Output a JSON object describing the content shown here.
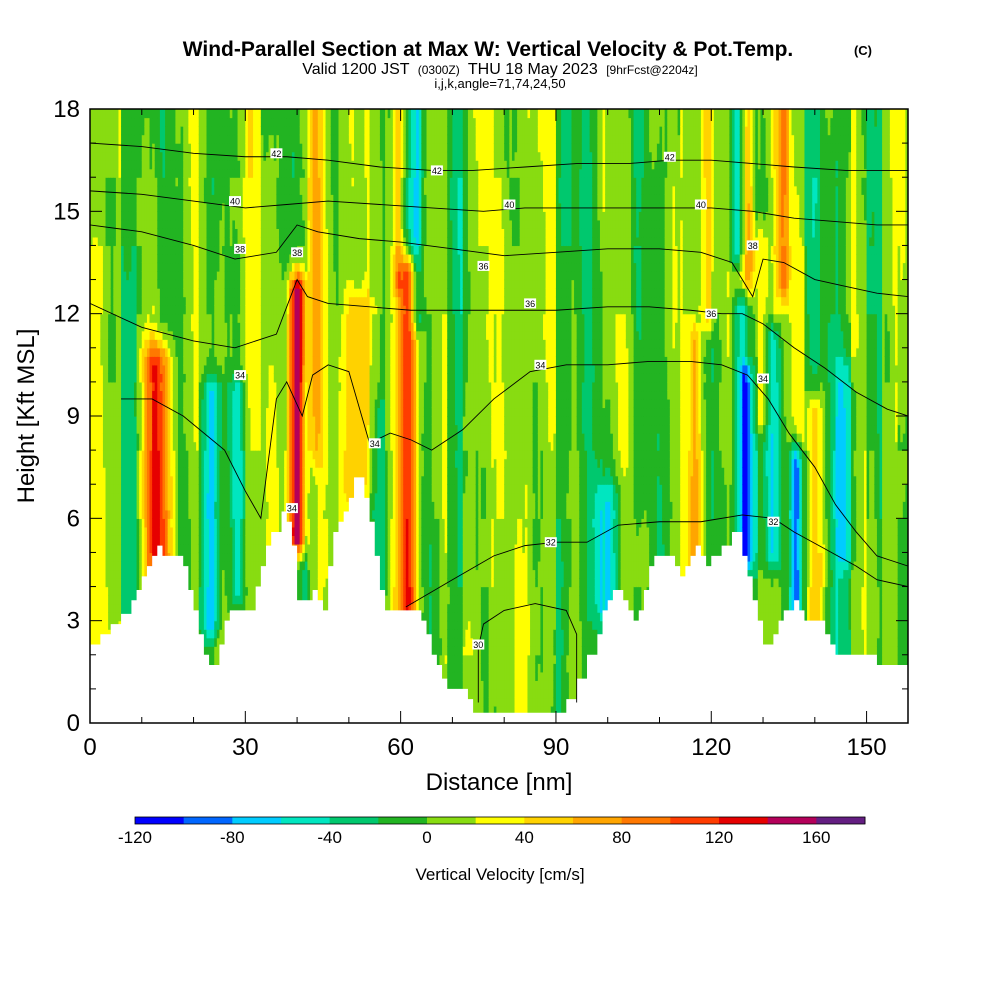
{
  "titles": {
    "main": "Wind-Parallel Section at Max W: Vertical Velocity & Pot.Temp.",
    "copyright": "(C)",
    "valid_prefix": "Valid 1200 JST",
    "valid_utc": "(0300Z)",
    "valid_date": "THU 18 May 2023",
    "forecast": "[9hrFcst@2204z]",
    "indices": "i,j,k,angle=71,74,24,50"
  },
  "chart_data": {
    "type": "heatmap",
    "xlabel": "Distance [nm]",
    "ylabel": "Height [Kft MSL]",
    "xlim": [
      0,
      158
    ],
    "ylim": [
      0,
      18
    ],
    "x_ticks": [
      0,
      30,
      60,
      90,
      120,
      150
    ],
    "x_tick_labels": [
      "0",
      "30",
      "60",
      "90",
      "120",
      "150"
    ],
    "y_ticks": [
      0,
      3,
      6,
      9,
      12,
      15,
      18
    ],
    "y_tick_labels": [
      "0",
      "3",
      "6",
      "9",
      "12",
      "15",
      "18"
    ],
    "colorbar": {
      "label": "Vertical Velocity [cm/s]",
      "levels": [
        -120,
        -100,
        -80,
        -60,
        -40,
        -20,
        0,
        20,
        40,
        60,
        80,
        100,
        120,
        140,
        160,
        180
      ],
      "colors": [
        "#0000ff",
        "#0066ff",
        "#00ccff",
        "#00e6c0",
        "#00c86e",
        "#22b422",
        "#88dc11",
        "#ffff00",
        "#ffd200",
        "#ffa500",
        "#ff7800",
        "#ff3c00",
        "#e60000",
        "#b4005a",
        "#641e82"
      ],
      "tick_values": [
        -120,
        -80,
        -40,
        0,
        40,
        80,
        120,
        160
      ],
      "tick_labels": [
        "-120",
        "-80",
        "-40",
        "0",
        "40",
        "80",
        "120",
        "160"
      ]
    },
    "terrain": {
      "x": [
        0,
        2,
        4,
        6,
        8,
        9,
        10,
        11,
        12,
        13,
        14,
        16,
        18,
        19,
        20,
        21,
        22,
        23,
        24,
        25,
        26,
        27,
        28,
        30,
        31,
        32,
        33,
        34,
        35,
        37,
        38,
        39,
        40,
        41,
        42,
        43,
        44,
        45,
        46,
        47,
        48,
        49,
        50,
        51,
        52,
        53,
        54,
        55,
        56,
        57,
        58,
        59,
        60,
        62,
        63,
        64,
        65,
        66,
        67,
        68,
        69,
        70,
        71,
        72,
        73,
        74,
        76,
        78,
        80,
        82,
        84,
        86,
        88,
        90,
        92,
        94,
        96,
        98,
        99,
        100,
        101,
        102,
        103,
        104,
        105,
        106,
        107,
        108,
        109,
        110,
        111,
        112,
        113,
        114,
        115,
        116,
        117,
        118,
        119,
        120,
        122,
        124,
        125,
        126,
        127,
        128,
        129,
        130,
        131,
        132,
        133,
        134,
        135,
        136,
        137,
        138,
        139,
        140,
        141,
        142,
        143,
        144,
        145,
        146,
        147,
        148,
        150,
        152,
        154,
        156,
        158
      ],
      "y": [
        2.3,
        2.6,
        2.9,
        3.2,
        3.6,
        3.9,
        4.3,
        4.6,
        4.9,
        5.2,
        4.9,
        4.9,
        4.6,
        3.9,
        3.3,
        2.6,
        2.0,
        1.7,
        1.7,
        2.3,
        3.0,
        3.3,
        3.3,
        3.3,
        3.3,
        4.0,
        4.6,
        5.2,
        5.6,
        6.2,
        5.9,
        5.2,
        3.6,
        3.6,
        3.6,
        3.9,
        3.6,
        3.3,
        4.6,
        5.6,
        5.9,
        6.2,
        6.6,
        7.2,
        7.2,
        6.6,
        5.9,
        4.9,
        3.9,
        3.3,
        3.3,
        3.3,
        3.3,
        3.3,
        3.3,
        3.0,
        2.6,
        2.0,
        1.7,
        1.3,
        1.0,
        1.0,
        1.0,
        1.0,
        0.7,
        0.3,
        0.3,
        0.3,
        0.3,
        0.3,
        0.3,
        0.3,
        0.3,
        0.3,
        0.7,
        1.3,
        2.0,
        2.6,
        3.3,
        3.6,
        3.9,
        3.9,
        3.6,
        3.3,
        3.0,
        3.3,
        3.9,
        4.6,
        4.9,
        4.9,
        4.9,
        4.9,
        4.6,
        4.3,
        4.6,
        4.9,
        5.2,
        4.9,
        4.6,
        4.9,
        5.2,
        5.6,
        5.6,
        4.9,
        4.3,
        3.6,
        3.0,
        2.3,
        2.3,
        2.6,
        3.0,
        3.3,
        3.3,
        3.6,
        3.3,
        3.0,
        3.0,
        3.0,
        3.0,
        2.6,
        2.3,
        2.0,
        2.0,
        2.0,
        2.0,
        2.0,
        2.0,
        1.7,
        1.7,
        1.7,
        1.7
      ]
    },
    "velocity_features": [
      {
        "type": "updraft",
        "x_center": 13,
        "half_width": 2.5,
        "base": 4,
        "top": 10.5,
        "peak": 115
      },
      {
        "type": "downdraft",
        "x_center": 23.5,
        "half_width": 2,
        "base": 3,
        "top": 9.5,
        "peak": -65
      },
      {
        "type": "downdraft",
        "x_center": 28.5,
        "half_width": 1.5,
        "base": 4,
        "top": 9.5,
        "peak": -45
      },
      {
        "type": "updraft",
        "x_center": 40,
        "half_width": 1.6,
        "base": 5.5,
        "top": 12.5,
        "peak": 170
      },
      {
        "type": "updraft",
        "x_center": 43.5,
        "half_width": 1.2,
        "base": 8,
        "top": 18,
        "peak": 45
      },
      {
        "type": "updraft",
        "x_center": 52,
        "half_width": 2.5,
        "base": 7,
        "top": 12,
        "peak": 55
      },
      {
        "type": "downdraft",
        "x_center": 56,
        "half_width": 1.5,
        "base": 4,
        "top": 9,
        "peak": -30
      },
      {
        "type": "updraft",
        "x_center": 61.5,
        "half_width": 1.8,
        "base": 3.5,
        "top": 13,
        "peak": 130
      },
      {
        "type": "updraft",
        "x_center": 59.5,
        "half_width": 1,
        "base": 13,
        "top": 18,
        "peak": 45
      },
      {
        "type": "downdraft",
        "x_center": 63,
        "half_width": 1.3,
        "base": 12,
        "top": 18,
        "peak": -55
      },
      {
        "type": "downdraft",
        "x_center": 100,
        "half_width": 2.5,
        "base": 3.5,
        "top": 6.5,
        "peak": -55
      },
      {
        "type": "updraft",
        "x_center": 117,
        "half_width": 1.2,
        "base": 4.5,
        "top": 11,
        "peak": 45
      },
      {
        "type": "updraft",
        "x_center": 119.5,
        "half_width": 1.2,
        "base": 12,
        "top": 18,
        "peak": 55
      },
      {
        "type": "downdraft",
        "x_center": 126.5,
        "half_width": 1.8,
        "base": 5,
        "top": 12,
        "peak": -115
      },
      {
        "type": "updraft",
        "x_center": 127,
        "half_width": 1.3,
        "base": 11,
        "top": 18,
        "peak": 80
      },
      {
        "type": "downdraft",
        "x_center": 125,
        "half_width": 1.5,
        "base": 14,
        "top": 18,
        "peak": -70
      },
      {
        "type": "updraft",
        "x_center": 129.5,
        "half_width": 1.8,
        "base": 9,
        "top": 14,
        "peak": 45
      },
      {
        "type": "downdraft",
        "x_center": 132,
        "half_width": 1.5,
        "base": 5,
        "top": 11,
        "peak": -70
      },
      {
        "type": "downdraft",
        "x_center": 136.5,
        "half_width": 1.3,
        "base": 3,
        "top": 7.5,
        "peak": -115
      },
      {
        "type": "updraft",
        "x_center": 140,
        "half_width": 1.6,
        "base": 3,
        "top": 9,
        "peak": 65
      },
      {
        "type": "updraft",
        "x_center": 134,
        "half_width": 1.2,
        "base": 13,
        "top": 18,
        "peak": 60
      },
      {
        "type": "downdraft",
        "x_center": 146,
        "half_width": 2,
        "base": 5,
        "top": 10,
        "peak": -45
      },
      {
        "type": "updraft",
        "x_center": 151.5,
        "half_width": 1.5,
        "base": 3,
        "top": 8,
        "peak": 10
      }
    ],
    "theta_contours": [
      {
        "level": 30,
        "label": "30",
        "points": [
          [
            75,
            0.6
          ],
          [
            75,
            2.2
          ],
          [
            76,
            2.9
          ],
          [
            80,
            3.3
          ],
          [
            86,
            3.5
          ],
          [
            92,
            3.3
          ],
          [
            94,
            2.6
          ],
          [
            94,
            0.6
          ]
        ]
      },
      {
        "level": 32,
        "label": "32",
        "points": [
          [
            61,
            3.4
          ],
          [
            70,
            4.2
          ],
          [
            78,
            4.9
          ],
          [
            84,
            5.2
          ],
          [
            90,
            5.3
          ],
          [
            96,
            5.3
          ],
          [
            102,
            5.8
          ],
          [
            110,
            5.9
          ],
          [
            118,
            5.9
          ],
          [
            126,
            6.1
          ],
          [
            132,
            6.0
          ],
          [
            136,
            5.6
          ],
          [
            142,
            5.1
          ],
          [
            148,
            4.6
          ],
          [
            152,
            4.2
          ],
          [
            158,
            4.0
          ]
        ]
      },
      {
        "level": 34,
        "label": "34",
        "points": [
          [
            6,
            9.5
          ],
          [
            12,
            9.5
          ],
          [
            18,
            9.0
          ],
          [
            26,
            8.0
          ],
          [
            30,
            6.8
          ],
          [
            33,
            6.0
          ],
          [
            36,
            9.5
          ],
          [
            38,
            10.0
          ],
          [
            41,
            9.0
          ],
          [
            43,
            10.2
          ],
          [
            46,
            10.5
          ],
          [
            50,
            10.3
          ],
          [
            54,
            8.2
          ],
          [
            58,
            8.5
          ],
          [
            62,
            8.3
          ],
          [
            66,
            8.0
          ],
          [
            72,
            8.6
          ],
          [
            78,
            9.5
          ],
          [
            85,
            10.3
          ],
          [
            92,
            10.5
          ],
          [
            100,
            10.5
          ],
          [
            108,
            10.6
          ],
          [
            116,
            10.6
          ],
          [
            122,
            10.5
          ],
          [
            127,
            10.2
          ],
          [
            131,
            9.5
          ],
          [
            135,
            8.5
          ],
          [
            140,
            7.5
          ],
          [
            144,
            6.4
          ],
          [
            148,
            5.6
          ],
          [
            152,
            4.9
          ],
          [
            158,
            4.6
          ]
        ]
      },
      {
        "level": 36,
        "label": "36",
        "points": [
          [
            0,
            12.3
          ],
          [
            10,
            11.6
          ],
          [
            20,
            11.2
          ],
          [
            28,
            11.0
          ],
          [
            36,
            11.4
          ],
          [
            40,
            13.0
          ],
          [
            42,
            12.5
          ],
          [
            46,
            12.3
          ],
          [
            54,
            12.2
          ],
          [
            62,
            12.1
          ],
          [
            70,
            12.1
          ],
          [
            80,
            12.1
          ],
          [
            90,
            12.1
          ],
          [
            100,
            12.2
          ],
          [
            108,
            12.2
          ],
          [
            116,
            12.1
          ],
          [
            122,
            12.0
          ],
          [
            126,
            12.0
          ],
          [
            130,
            11.7
          ],
          [
            136,
            11.0
          ],
          [
            142,
            10.4
          ],
          [
            148,
            9.7
          ],
          [
            154,
            9.2
          ],
          [
            158,
            9.0
          ]
        ]
      },
      {
        "level": 38,
        "label": "38",
        "points": [
          [
            0,
            14.6
          ],
          [
            10,
            14.4
          ],
          [
            20,
            14.0
          ],
          [
            28,
            13.6
          ],
          [
            36,
            13.8
          ],
          [
            40,
            14.6
          ],
          [
            44,
            14.4
          ],
          [
            52,
            14.2
          ],
          [
            60,
            14.1
          ],
          [
            70,
            13.9
          ],
          [
            80,
            13.7
          ],
          [
            90,
            13.8
          ],
          [
            100,
            13.9
          ],
          [
            110,
            13.9
          ],
          [
            118,
            13.8
          ],
          [
            124,
            13.5
          ],
          [
            128,
            12.5
          ],
          [
            130,
            13.6
          ],
          [
            134,
            13.5
          ],
          [
            140,
            13.0
          ],
          [
            146,
            12.8
          ],
          [
            152,
            12.6
          ],
          [
            158,
            12.5
          ]
        ]
      },
      {
        "level": 40,
        "label": "40",
        "points": [
          [
            0,
            15.6
          ],
          [
            10,
            15.5
          ],
          [
            20,
            15.3
          ],
          [
            30,
            15.1
          ],
          [
            38,
            15.2
          ],
          [
            46,
            15.3
          ],
          [
            56,
            15.2
          ],
          [
            66,
            15.1
          ],
          [
            76,
            15.0
          ],
          [
            84,
            15.1
          ],
          [
            94,
            15.1
          ],
          [
            104,
            15.1
          ],
          [
            112,
            15.1
          ],
          [
            120,
            15.1
          ],
          [
            128,
            15.0
          ],
          [
            136,
            14.8
          ],
          [
            144,
            14.7
          ],
          [
            152,
            14.6
          ],
          [
            158,
            14.6
          ]
        ]
      },
      {
        "level": 42,
        "label": "42",
        "points": [
          [
            0,
            17.0
          ],
          [
            10,
            16.9
          ],
          [
            20,
            16.7
          ],
          [
            30,
            16.6
          ],
          [
            38,
            16.6
          ],
          [
            46,
            16.5
          ],
          [
            56,
            16.3
          ],
          [
            66,
            16.2
          ],
          [
            74,
            16.2
          ],
          [
            84,
            16.3
          ],
          [
            94,
            16.4
          ],
          [
            104,
            16.4
          ],
          [
            112,
            16.5
          ],
          [
            120,
            16.5
          ],
          [
            128,
            16.4
          ],
          [
            136,
            16.3
          ],
          [
            146,
            16.2
          ],
          [
            158,
            16.2
          ]
        ]
      }
    ],
    "theta_label_positions": [
      {
        "label": "42",
        "x": 36,
        "y": 16.7
      },
      {
        "label": "42",
        "x": 67,
        "y": 16.2
      },
      {
        "label": "42",
        "x": 112,
        "y": 16.6
      },
      {
        "label": "40",
        "x": 28,
        "y": 15.3
      },
      {
        "label": "40",
        "x": 81,
        "y": 15.2
      },
      {
        "label": "40",
        "x": 118,
        "y": 15.2
      },
      {
        "label": "38",
        "x": 29,
        "y": 13.9
      },
      {
        "label": "38",
        "x": 40,
        "y": 13.8
      },
      {
        "label": "38",
        "x": 128,
        "y": 14.0
      },
      {
        "label": "36",
        "x": 76,
        "y": 13.4
      },
      {
        "label": "36",
        "x": 85,
        "y": 12.3
      },
      {
        "label": "36",
        "x": 120,
        "y": 12.0
      },
      {
        "label": "34",
        "x": 29,
        "y": 10.2
      },
      {
        "label": "34",
        "x": 87,
        "y": 10.5
      },
      {
        "label": "34",
        "x": 130,
        "y": 10.1
      },
      {
        "label": "34",
        "x": 55,
        "y": 8.2
      },
      {
        "label": "34",
        "x": 39,
        "y": 6.3
      },
      {
        "label": "32",
        "x": 89,
        "y": 5.3
      },
      {
        "label": "32",
        "x": 132,
        "y": 5.9
      },
      {
        "label": "30",
        "x": 75,
        "y": 2.3
      }
    ]
  }
}
